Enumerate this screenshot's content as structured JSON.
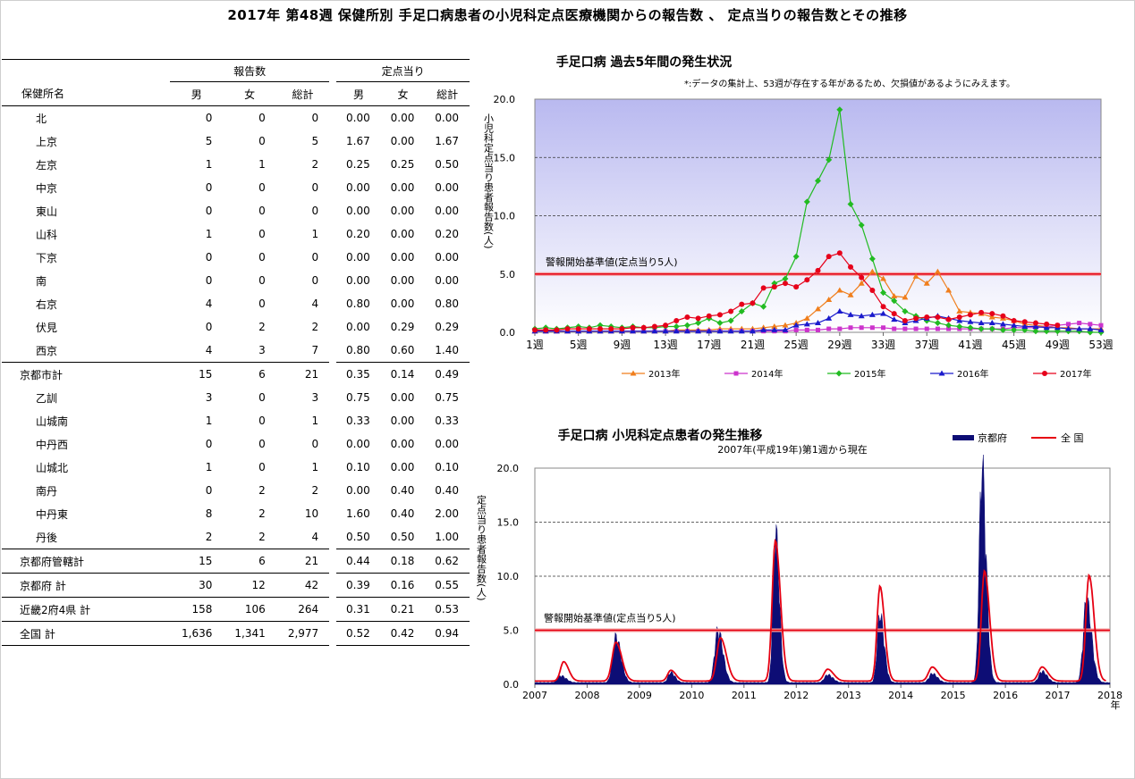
{
  "page_title": "2017年 第48週 保健所別 手足口病患者の小児科定点医療機関からの報告数 、 定点当りの報告数とその推移",
  "table": {
    "header_group1": "報告数",
    "header_group2": "定点当り",
    "col_name": "保健所名",
    "cols": [
      "男",
      "女",
      "総計",
      "男",
      "女",
      "総計"
    ],
    "rows": [
      {
        "name": "北",
        "v": [
          "0",
          "0",
          "0",
          "0.00",
          "0.00",
          "0.00"
        ]
      },
      {
        "name": "上京",
        "v": [
          "5",
          "0",
          "5",
          "1.67",
          "0.00",
          "1.67"
        ]
      },
      {
        "name": "左京",
        "v": [
          "1",
          "1",
          "2",
          "0.25",
          "0.25",
          "0.50"
        ]
      },
      {
        "name": "中京",
        "v": [
          "0",
          "0",
          "0",
          "0.00",
          "0.00",
          "0.00"
        ]
      },
      {
        "name": "東山",
        "v": [
          "0",
          "0",
          "0",
          "0.00",
          "0.00",
          "0.00"
        ]
      },
      {
        "name": "山科",
        "v": [
          "1",
          "0",
          "1",
          "0.20",
          "0.00",
          "0.20"
        ]
      },
      {
        "name": "下京",
        "v": [
          "0",
          "0",
          "0",
          "0.00",
          "0.00",
          "0.00"
        ]
      },
      {
        "name": "南",
        "v": [
          "0",
          "0",
          "0",
          "0.00",
          "0.00",
          "0.00"
        ]
      },
      {
        "name": "右京",
        "v": [
          "4",
          "0",
          "4",
          "0.80",
          "0.00",
          "0.80"
        ]
      },
      {
        "name": "伏見",
        "v": [
          "0",
          "2",
          "2",
          "0.00",
          "0.29",
          "0.29"
        ]
      },
      {
        "name": "西京",
        "v": [
          "4",
          "3",
          "7",
          "0.80",
          "0.60",
          "1.40"
        ]
      },
      {
        "name": "京都市計",
        "v": [
          "15",
          "6",
          "21",
          "0.35",
          "0.14",
          "0.49"
        ],
        "top": true
      },
      {
        "name": "乙訓",
        "v": [
          "3",
          "0",
          "3",
          "0.75",
          "0.00",
          "0.75"
        ]
      },
      {
        "name": "山城南",
        "v": [
          "1",
          "0",
          "1",
          "0.33",
          "0.00",
          "0.33"
        ]
      },
      {
        "name": "中丹西",
        "v": [
          "0",
          "0",
          "0",
          "0.00",
          "0.00",
          "0.00"
        ]
      },
      {
        "name": "山城北",
        "v": [
          "1",
          "0",
          "1",
          "0.10",
          "0.00",
          "0.10"
        ]
      },
      {
        "name": "南丹",
        "v": [
          "0",
          "2",
          "2",
          "0.00",
          "0.40",
          "0.40"
        ]
      },
      {
        "name": "中丹東",
        "v": [
          "8",
          "2",
          "10",
          "1.60",
          "0.40",
          "2.00"
        ]
      },
      {
        "name": "丹後",
        "v": [
          "2",
          "2",
          "4",
          "0.50",
          "0.50",
          "1.00"
        ]
      },
      {
        "name": "京都府管轄計",
        "v": [
          "15",
          "6",
          "21",
          "0.44",
          "0.18",
          "0.62"
        ],
        "top": true
      },
      {
        "name": "京都府 計",
        "v": [
          "30",
          "12",
          "42",
          "0.39",
          "0.16",
          "0.55"
        ],
        "top": true
      },
      {
        "name": "近畿2府4県 計",
        "v": [
          "158",
          "106",
          "264",
          "0.31",
          "0.21",
          "0.53"
        ],
        "top": true
      },
      {
        "name": "全国 計",
        "v": [
          "1,636",
          "1,341",
          "2,977",
          "0.52",
          "0.42",
          "0.94"
        ],
        "top": true
      }
    ]
  },
  "chart_data": [
    {
      "type": "line",
      "title": "手足口病 過去5年間の発生状況",
      "note": "*:データの集計上、53週が存在する年があるため、欠損値があるようにみえます。",
      "ylabel": "小児科定点当り患者報告数(人)",
      "ylim": [
        0,
        20
      ],
      "yticks": [
        "0.0",
        "5.0",
        "10.0",
        "15.0",
        "20.0"
      ],
      "xlim": [
        1,
        53
      ],
      "xticks": [
        "1週",
        "5週",
        "9週",
        "13週",
        "17週",
        "21週",
        "25週",
        "29週",
        "33週",
        "37週",
        "41週",
        "45週",
        "49週",
        "53週"
      ],
      "threshold": {
        "value": 5.0,
        "label": "警報開始基準値(定点当り5人)"
      },
      "grid": "horizontal dashed",
      "legend": "bottom",
      "series": [
        {
          "name": "2013年",
          "color": "#f07e1c",
          "marker": "triangle",
          "values": [
            0.1,
            0.1,
            0.1,
            0.1,
            0.1,
            0.1,
            0.1,
            0.1,
            0.1,
            0.1,
            0.1,
            0.1,
            0.1,
            0.2,
            0.2,
            0.2,
            0.2,
            0.3,
            0.3,
            0.3,
            0.3,
            0.4,
            0.5,
            0.6,
            0.8,
            1.2,
            2.0,
            2.8,
            3.6,
            3.2,
            4.2,
            5.2,
            4.6,
            3.1,
            3.0,
            4.8,
            4.2,
            5.2,
            3.6,
            1.8,
            1.7,
            1.6,
            1.3,
            1.2,
            1.0,
            0.7,
            0.6,
            0.5,
            0.4,
            0.4,
            0.3,
            0.3,
            0.3
          ]
        },
        {
          "name": "2014年",
          "color": "#cc33cc",
          "marker": "square",
          "values": [
            0.1,
            0.1,
            0.1,
            0.1,
            0.1,
            0.1,
            0.1,
            0.1,
            0.1,
            0.1,
            0.1,
            0.1,
            0.1,
            0.1,
            0.1,
            0.1,
            0.1,
            0.1,
            0.1,
            0.1,
            0.1,
            0.1,
            0.1,
            0.1,
            0.2,
            0.2,
            0.2,
            0.3,
            0.3,
            0.4,
            0.4,
            0.4,
            0.4,
            0.3,
            0.3,
            0.3,
            0.3,
            0.3,
            0.3,
            0.3,
            0.3,
            0.3,
            0.3,
            0.3,
            0.4,
            0.4,
            0.4,
            0.5,
            0.6,
            0.7,
            0.8,
            0.7,
            0.6
          ]
        },
        {
          "name": "2015年",
          "color": "#22bb22",
          "marker": "diamond",
          "values": [
            0.3,
            0.4,
            0.3,
            0.4,
            0.5,
            0.4,
            0.6,
            0.5,
            0.4,
            0.5,
            0.4,
            0.4,
            0.5,
            0.5,
            0.6,
            0.8,
            1.2,
            0.8,
            1.0,
            1.8,
            2.5,
            2.2,
            4.2,
            4.6,
            6.5,
            11.2,
            13.0,
            14.8,
            19.1,
            11.0,
            9.2,
            6.3,
            3.4,
            2.7,
            1.8,
            1.4,
            1.0,
            0.8,
            0.6,
            0.5,
            0.4,
            0.3,
            0.3,
            0.2,
            0.2,
            0.2,
            0.1,
            0.1,
            0.1,
            0.1,
            0.1,
            0.0,
            0.0
          ]
        },
        {
          "name": "2016年",
          "color": "#1a1acc",
          "marker": "triangle",
          "values": [
            0.1,
            0.1,
            0.1,
            0.1,
            0.1,
            0.1,
            0.1,
            0.1,
            0.1,
            0.1,
            0.1,
            0.1,
            0.1,
            0.1,
            0.1,
            0.1,
            0.1,
            0.1,
            0.1,
            0.1,
            0.1,
            0.2,
            0.2,
            0.2,
            0.6,
            0.7,
            0.8,
            1.2,
            1.8,
            1.5,
            1.4,
            1.5,
            1.6,
            1.1,
            0.8,
            1.0,
            1.2,
            1.4,
            1.2,
            1.0,
            0.9,
            0.8,
            0.8,
            0.7,
            0.6,
            0.5,
            0.5,
            0.4,
            0.4,
            0.3,
            0.3,
            0.3,
            0.2
          ]
        },
        {
          "name": "2017年",
          "color": "#e6001a",
          "marker": "circle",
          "values": [
            0.2,
            0.2,
            0.2,
            0.3,
            0.3,
            0.3,
            0.3,
            0.3,
            0.3,
            0.4,
            0.4,
            0.5,
            0.6,
            1.0,
            1.3,
            1.2,
            1.4,
            1.5,
            1.8,
            2.4,
            2.5,
            3.8,
            3.9,
            4.2,
            3.9,
            4.5,
            5.3,
            6.5,
            6.8,
            5.6,
            4.7,
            3.6,
            2.2,
            1.6,
            1.0,
            1.2,
            1.3,
            1.3,
            1.1,
            1.3,
            1.5,
            1.7,
            1.6,
            1.4,
            1.0,
            0.9,
            0.8,
            0.7,
            0.6
          ]
        }
      ]
    },
    {
      "type": "area",
      "title": "手足口病 小児科定点患者の発生推移",
      "subtitle": "2007年(平成19年)第1週から現在",
      "ylabel": "定点当り患者報告数(人)",
      "ylim": [
        0,
        20
      ],
      "yticks": [
        "0.0",
        "5.0",
        "10.0",
        "15.0",
        "20.0"
      ],
      "xlim": [
        2007,
        2018
      ],
      "xticks": [
        "2007",
        "2008",
        "2009",
        "2010",
        "2011",
        "2012",
        "2013",
        "2014",
        "2015",
        "2016",
        "2017",
        "2018"
      ],
      "x_unit": "年",
      "threshold": {
        "value": 5.0,
        "label": "警報開始基準値(定点当り5人)"
      },
      "grid": "horizontal dashed",
      "legend": "top-right",
      "series": [
        {
          "name": "京都府",
          "color": "#0d0d75",
          "style": "area",
          "peaks": [
            [
              2007.5,
              0.6,
              0.06
            ],
            [
              2008.55,
              4.0,
              0.06
            ],
            [
              2009.6,
              0.9,
              0.05
            ],
            [
              2010.5,
              4.6,
              0.06
            ],
            [
              2011.6,
              13.5,
              0.045
            ],
            [
              2012.6,
              0.7,
              0.06
            ],
            [
              2013.6,
              6.0,
              0.05
            ],
            [
              2014.6,
              0.8,
              0.06
            ],
            [
              2015.55,
              18.9,
              0.05
            ],
            [
              2016.7,
              1.0,
              0.06
            ],
            [
              2017.55,
              7.2,
              0.06
            ]
          ]
        },
        {
          "name": "全 国",
          "color": "#e60012",
          "style": "line",
          "peaks": [
            [
              2007.55,
              1.8,
              0.06
            ],
            [
              2008.55,
              3.6,
              0.07
            ],
            [
              2009.6,
              1.0,
              0.06
            ],
            [
              2010.55,
              4.0,
              0.07
            ],
            [
              2011.6,
              13.0,
              0.06
            ],
            [
              2012.6,
              1.1,
              0.07
            ],
            [
              2013.6,
              8.8,
              0.055
            ],
            [
              2014.6,
              1.3,
              0.07
            ],
            [
              2015.6,
              10.2,
              0.06
            ],
            [
              2016.7,
              1.3,
              0.07
            ],
            [
              2017.6,
              9.8,
              0.06
            ]
          ]
        }
      ]
    }
  ]
}
